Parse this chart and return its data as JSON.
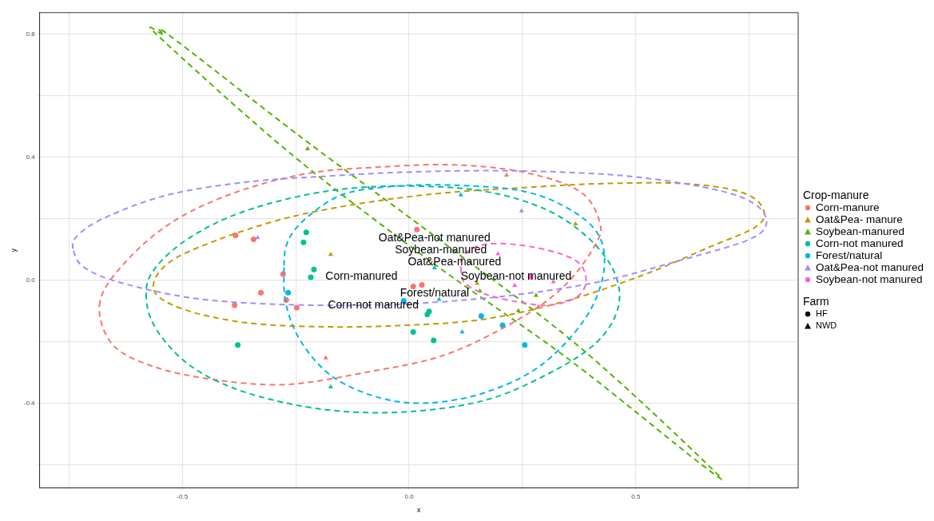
{
  "chart_data": {
    "type": "scatter",
    "xlabel": "x",
    "ylabel": "y",
    "legend_title": [
      "Crop-manure",
      "Farm"
    ],
    "legend": "right",
    "grid": true,
    "line_style": "dashed",
    "xlim": [
      -0.815,
      0.858
    ],
    "ylim": [
      -0.674,
      0.869
    ],
    "xticks": [
      {
        "value": -0.75,
        "label": null
      },
      -0.5,
      {
        "value": -0.25,
        "label": null
      },
      {
        "value": 0,
        "label": "0.0"
      },
      {
        "value": 0.25,
        "label": null
      },
      0.5,
      {
        "value": 0.75,
        "label": null
      }
    ],
    "yticks": [
      {
        "value": -0.6,
        "label": null
      },
      -0.4,
      {
        "value": -0.2,
        "label": null
      },
      {
        "value": 0,
        "label": "0.0"
      },
      {
        "value": 0.2,
        "label": null
      },
      0.4,
      {
        "value": 0.6,
        "label": null
      },
      0.8
    ],
    "annotations": [
      "Corn-manured",
      "Oat&Pea-manured",
      "Soybean-manured",
      "Corn-not manured",
      "Forest/natural",
      "Oat&Pea-not manured",
      "Soybean-not manured"
    ],
    "series": [
      {
        "name": "Corn-manure",
        "color": "#f8766d",
        "marker": "circle",
        "x": [
          -0.383,
          -0.343,
          -0.327,
          -0.385,
          -0.278,
          -0.271,
          -0.248,
          0.017,
          0.009,
          0.028
        ],
        "values": [
          0.146,
          0.133,
          -0.04,
          -0.081,
          0.02,
          -0.064,
          -0.089,
          0.165,
          -0.02,
          -0.015
        ]
      },
      {
        "color": "#f8766d",
        "marker": "triangle",
        "x": [
          -0.184,
          0.215,
          0.285
        ],
        "values": [
          -0.252,
          0.341,
          -0.086
        ]
      },
      {
        "name": "Oat&Pea- manure",
        "color": "#c49a00",
        "marker": "triangle",
        "x": [
          -0.173,
          0.15,
          0.367
        ],
        "values": [
          0.084,
          -0.01,
          0.183
        ]
      },
      {
        "name": "Soybean-manured",
        "color": "#53b400",
        "marker": "triangle",
        "x": [
          -0.224,
          0.156,
          0.28,
          0.241
        ],
        "values": [
          0.427,
          -0.035,
          -0.049,
          -0.099
        ]
      },
      {
        "name": "Corn-not manured",
        "color": "#00c094",
        "marker": "circle",
        "x": [
          -0.378,
          -0.227,
          -0.233,
          -0.21,
          -0.217,
          0.044,
          0.04,
          0.009,
          0.054
        ],
        "values": [
          -0.21,
          0.156,
          0.123,
          0.035,
          0.01,
          -0.101,
          -0.111,
          -0.168,
          -0.195
        ]
      },
      {
        "color": "#00c094",
        "marker": "triangle",
        "x": [
          -0.173
        ],
        "values": [
          -0.346
        ]
      },
      {
        "name": "Forest/natural",
        "color": "#00b6eb",
        "marker": "circle",
        "x": [
          -0.267,
          -0.012,
          0.159,
          0.206,
          0.255
        ],
        "values": [
          -0.04,
          -0.067,
          -0.116,
          -0.146,
          -0.21
        ]
      },
      {
        "color": "#00b6eb",
        "marker": "triangle",
        "x": [
          0.056,
          0.066,
          0.117,
          0.114
        ],
        "values": [
          0.04,
          -0.062,
          -0.168,
          0.277
        ]
      },
      {
        "name": "Oat&Pea-not manured",
        "color": "#a58aff",
        "marker": "triangle",
        "x": [
          -0.334,
          0.248
        ],
        "values": [
          0.138,
          0.225
        ]
      },
      {
        "name": "Soybean-not manured",
        "color": "#fb61d7",
        "marker": "circle",
        "x": [
          0.268
        ],
        "values": [
          0.012
        ]
      },
      {
        "color": "#fb61d7",
        "marker": "triangle",
        "x": [
          0.196,
          0.233,
          0.318
        ],
        "values": [
          0.086,
          -0.017,
          -0.005
        ]
      },
      {
        "name": "HF",
        "color": "#000000",
        "marker": "circle"
      },
      {
        "name": "NWD",
        "color": "#000000",
        "marker": "triangle"
      }
    ]
  }
}
